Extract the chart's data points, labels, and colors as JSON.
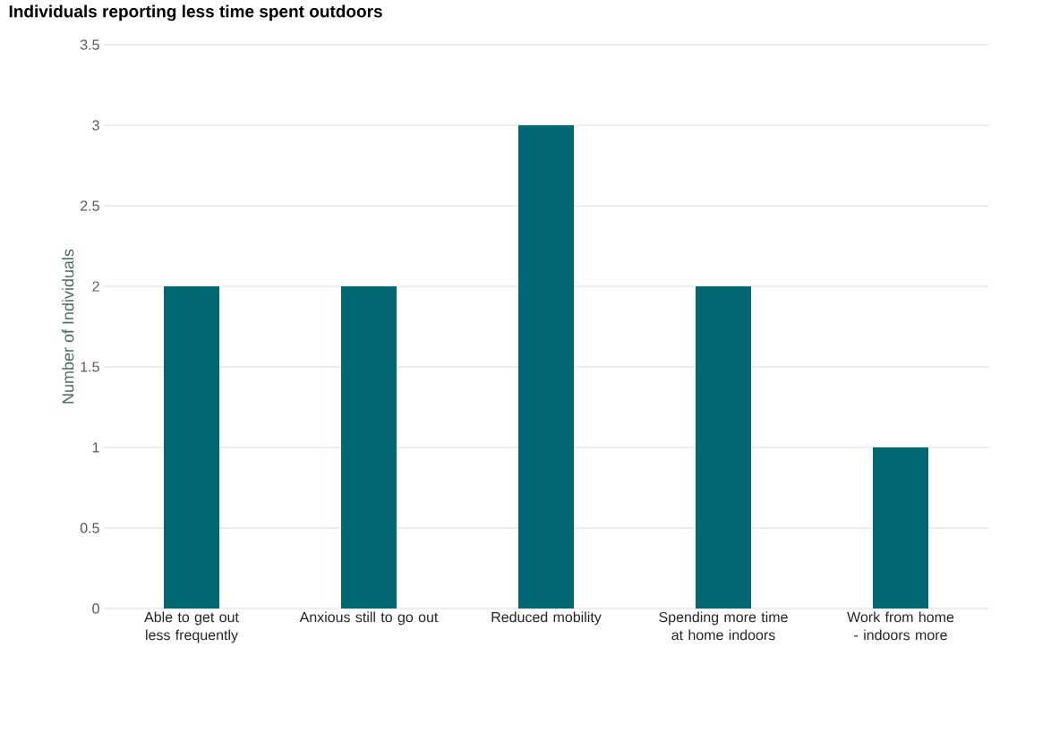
{
  "chart_data": {
    "type": "bar",
    "title": "Individuals reporting less time spent outdoors",
    "ylabel": "Number of Individuals",
    "categories": [
      "Able to get out less frequently",
      "Anxious still to go out",
      "Reduced mobility",
      "Spending more time at home indoors",
      "Work from home - indoors more"
    ],
    "values": [
      2,
      2,
      3,
      2,
      1
    ],
    "color": "#006773",
    "ylim": [
      0,
      3.5
    ],
    "yticks": [
      0,
      0.5,
      1,
      1.5,
      2,
      2.5,
      3,
      3.5
    ],
    "grid": "y"
  }
}
